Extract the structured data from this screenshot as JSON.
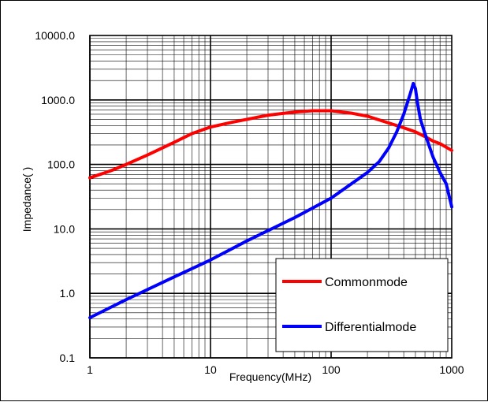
{
  "chart_data": {
    "type": "line",
    "title": "",
    "xlabel": "Frequency(MHz)",
    "ylabel": "Impedance(  )",
    "x_scale": "log",
    "y_scale": "log",
    "xlim": [
      1,
      1000
    ],
    "ylim": [
      0.1,
      10000
    ],
    "grid": true,
    "legend_position": "bottom-right",
    "x_ticks": [
      {
        "value": 1,
        "label": "1"
      },
      {
        "value": 10,
        "label": "10"
      },
      {
        "value": 100,
        "label": "100"
      },
      {
        "value": 1000,
        "label": "1000"
      }
    ],
    "y_ticks": [
      {
        "value": 0.1,
        "label": "0.1"
      },
      {
        "value": 1,
        "label": "1.0"
      },
      {
        "value": 10,
        "label": "10.0"
      },
      {
        "value": 100,
        "label": "100.0"
      },
      {
        "value": 1000,
        "label": "1000.0"
      },
      {
        "value": 10000,
        "label": "10000.0"
      }
    ],
    "series": [
      {
        "name": "Commonmode",
        "color": "#ff0000",
        "x": [
          1,
          1.5,
          2,
          3,
          5,
          7,
          10,
          15,
          20,
          30,
          50,
          70,
          100,
          150,
          200,
          300,
          400,
          500,
          600,
          700,
          800,
          1000
        ],
        "y": [
          62,
          80,
          100,
          140,
          220,
          300,
          380,
          450,
          500,
          580,
          650,
          680,
          680,
          620,
          560,
          440,
          370,
          320,
          270,
          230,
          210,
          165
        ]
      },
      {
        "name": "Differentialmode",
        "color": "#0000ff",
        "x": [
          1,
          2,
          5,
          10,
          20,
          50,
          100,
          200,
          250,
          300,
          350,
          400,
          450,
          480,
          500,
          520,
          550,
          600,
          700,
          800,
          900,
          1000
        ],
        "y": [
          0.42,
          0.8,
          1.8,
          3.3,
          6.5,
          15,
          30,
          75,
          110,
          180,
          320,
          600,
          1200,
          1800,
          1500,
          900,
          500,
          300,
          130,
          75,
          50,
          22
        ]
      }
    ]
  }
}
